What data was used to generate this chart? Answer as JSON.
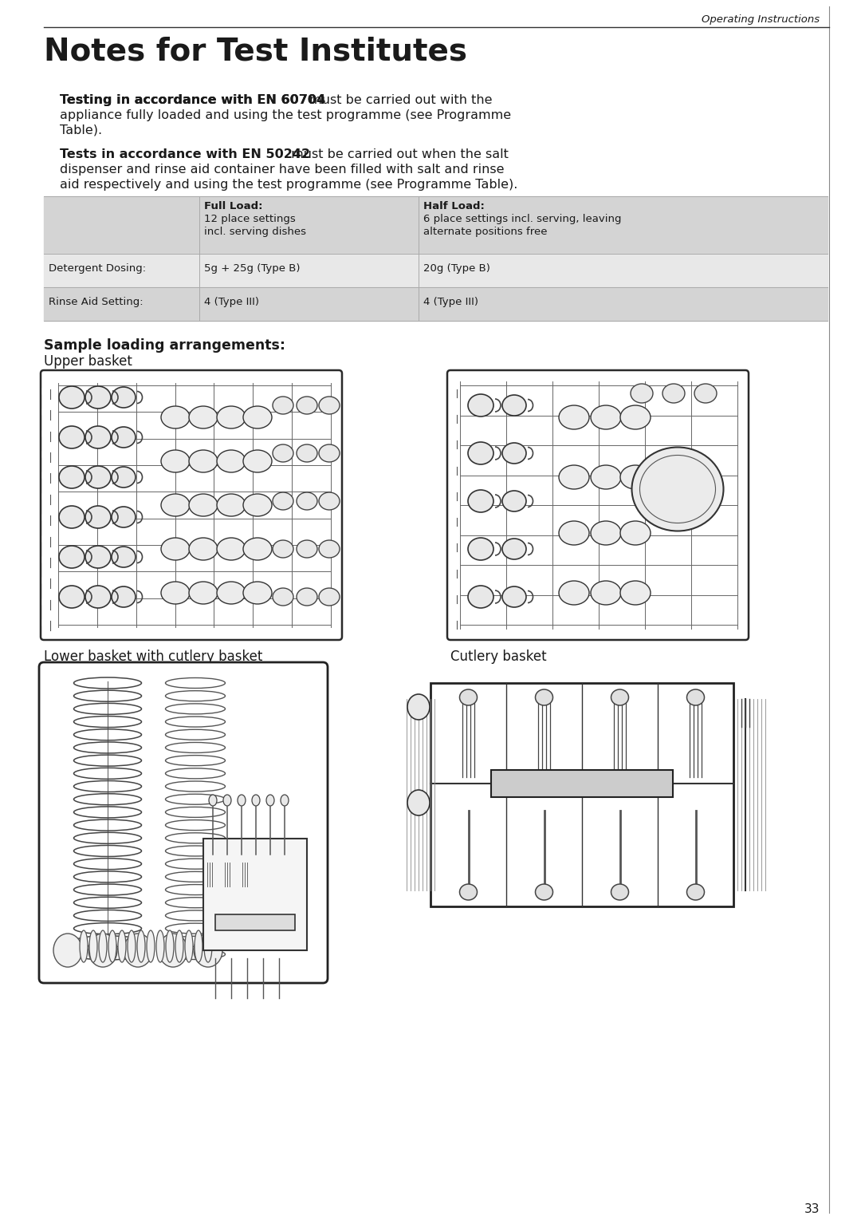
{
  "bg_color": "#ffffff",
  "page_width": 10.8,
  "page_height": 15.29,
  "header_text": "Operating Instructions",
  "title": "Notes for Test Institutes",
  "para1_bold": "Testing in accordance with EN 60704",
  "para1_line1_rest": " must be carried out with the",
  "para1_line2": "appliance fully loaded and using the test programme (see Programme",
  "para1_line3": "Table).",
  "para2_bold": "Tests in accordance with EN 50242",
  "para2_line1_rest": " must be carried out when the salt",
  "para2_line2": "dispenser and rinse aid container have been filled with salt and rinse",
  "para2_line3": "aid respectively and using the test programme (see Programme Table).",
  "table_header_col2_bold": "Full Load:",
  "table_header_col2_line2": "12 place settings",
  "table_header_col2_line3": "incl. serving dishes",
  "table_header_col3_bold": "Half Load:",
  "table_header_col3_line2": "6 place settings incl. serving, leaving",
  "table_header_col3_line3": "alternate positions free",
  "table_row1_col1": "Detergent Dosing:",
  "table_row1_col2": "5g + 25g (Type B)",
  "table_row1_col3": "20g (Type B)",
  "table_row2_col1": "Rinse Aid Setting:",
  "table_row2_col2": "4 (Type III)",
  "table_row2_col3": "4 (Type III)",
  "section_title_bold": "Sample loading arrangements:",
  "section_title_normal": "Upper basket",
  "lower_label": "Lower basket with cutlery basket",
  "cutlery_label": "Cutlery basket",
  "page_number": "33",
  "table_bg_header": "#d4d4d4",
  "table_bg_row1": "#e8e8e8",
  "table_bg_row2": "#d4d4d4",
  "text_color": "#1a1a1a",
  "line_color": "#444444"
}
